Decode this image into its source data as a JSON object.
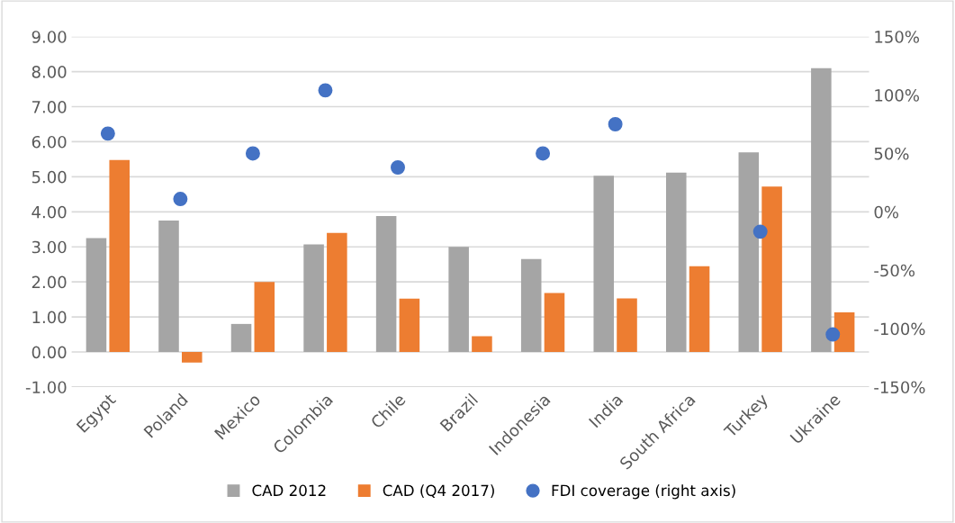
{
  "chart_data": {
    "type": "bar",
    "categories": [
      "Egypt",
      "Poland",
      "Mexico",
      "Colombia",
      "Chile",
      "Brazil",
      "Indonesia",
      "India",
      "South Africa",
      "Turkey",
      "Ukraine"
    ],
    "series": [
      {
        "name": "CAD 2012",
        "color": "#a5a5a5",
        "values": [
          3.25,
          3.75,
          0.8,
          3.07,
          3.88,
          3.0,
          2.65,
          5.03,
          5.12,
          5.7,
          8.1
        ]
      },
      {
        "name": "CAD (Q4 2017)",
        "color": "#ed7d31",
        "values": [
          5.48,
          -0.3,
          2.0,
          3.4,
          1.52,
          0.45,
          1.68,
          1.53,
          2.45,
          4.72,
          1.13
        ]
      },
      {
        "name": "FDI coverage (right axis)",
        "color": "#4472c4",
        "type": "scatter",
        "axis": "y2",
        "values": [
          67,
          11,
          50,
          104,
          38,
          null,
          50,
          75,
          null,
          -17,
          -105
        ]
      }
    ],
    "ylim": [
      -1,
      9
    ],
    "yticks": [
      {
        "value": -1,
        "label": "-1.00"
      },
      {
        "value": 0,
        "label": "0.00"
      },
      {
        "value": 1,
        "label": "1.00"
      },
      {
        "value": 2,
        "label": "2.00"
      },
      {
        "value": 3,
        "label": "3.00"
      },
      {
        "value": 4,
        "label": "4.00"
      },
      {
        "value": 5,
        "label": "5.00"
      },
      {
        "value": 6,
        "label": "6.00"
      },
      {
        "value": 7,
        "label": "7.00"
      },
      {
        "value": 8,
        "label": "8.00"
      },
      {
        "value": 9,
        "label": "9.00"
      }
    ],
    "y2lim": [
      -150,
      150
    ],
    "y2ticks": [
      {
        "value": -150,
        "label": "-150%"
      },
      {
        "value": -100,
        "label": "-100%"
      },
      {
        "value": -50,
        "label": "-50%"
      },
      {
        "value": 0,
        "label": "0%"
      },
      {
        "value": 50,
        "label": "50%"
      },
      {
        "value": 100,
        "label": "100%"
      },
      {
        "value": 150,
        "label": "150%"
      }
    ],
    "grid": "y",
    "legend": "bottom",
    "marker": "circle"
  }
}
